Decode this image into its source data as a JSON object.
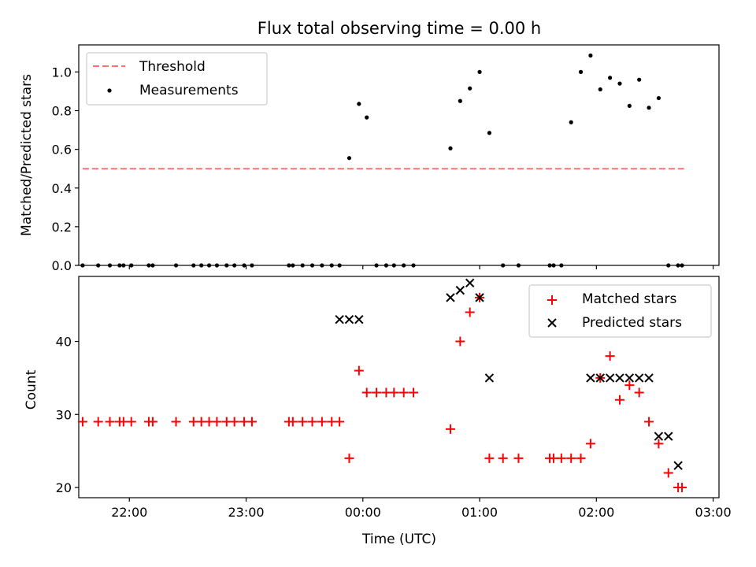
{
  "chart_data": [
    {
      "type": "scatter",
      "title": "Flux total observing time = 0.00 h",
      "xlabel": "",
      "ylabel": "Matched/Predicted stars",
      "xlim": [
        "21:34",
        "03:03"
      ],
      "ylim": [
        0,
        1.14
      ],
      "x_ticks": [
        "22:00",
        "23:00",
        "00:00",
        "01:00",
        "02:00",
        "03:00"
      ],
      "x_tick_labels_visible": false,
      "y_ticks": [
        0.0,
        0.2,
        0.4,
        0.6,
        0.8,
        1.0
      ],
      "y_tick_labels": [
        "0.0",
        "0.2",
        "0.4",
        "0.6",
        "0.8",
        "1.0"
      ],
      "legend": {
        "position": "upper left",
        "entries": [
          "Threshold",
          "Measurements"
        ]
      },
      "threshold": {
        "name": "Threshold",
        "y": 0.5,
        "x_range": [
          "21:36",
          "02:45"
        ],
        "color": "#ff7070",
        "style": "dashed"
      },
      "series": [
        {
          "name": "Measurements",
          "marker": "dot",
          "color": "#000000",
          "x": [
            "21:36",
            "21:44",
            "21:50",
            "21:55",
            "21:57",
            "22:01",
            "22:10",
            "22:12",
            "22:24",
            "22:33",
            "22:37",
            "22:41",
            "22:45",
            "22:50",
            "22:54",
            "22:59",
            "23:03",
            "23:22",
            "23:24",
            "23:29",
            "23:34",
            "23:39",
            "23:44",
            "23:48",
            "23:53",
            "23:58",
            "00:02",
            "00:07",
            "00:12",
            "00:16",
            "00:21",
            "00:26",
            "00:45",
            "00:50",
            "00:55",
            "01:00",
            "01:05",
            "01:12",
            "01:20",
            "01:36",
            "01:38",
            "01:42",
            "01:47",
            "01:52",
            "01:57",
            "02:02",
            "02:07",
            "02:12",
            "02:17",
            "02:22",
            "02:27",
            "02:32",
            "02:37",
            "02:42",
            "02:44"
          ],
          "y": [
            0,
            0,
            0,
            0,
            0,
            0,
            0,
            0,
            0,
            0,
            0,
            0,
            0,
            0,
            0,
            0,
            0,
            0,
            0,
            0,
            0,
            0,
            0,
            0,
            0.555,
            0.835,
            0.765,
            0,
            0,
            0,
            0,
            0,
            0.605,
            0.85,
            0.915,
            1.0,
            0.685,
            0,
            0,
            0,
            0,
            0,
            0.74,
            1.0,
            1.085,
            0.91,
            0.97,
            0.94,
            0.825,
            0.96,
            0.815,
            0.865,
            0,
            0,
            0
          ]
        }
      ]
    },
    {
      "type": "scatter",
      "title": "",
      "xlabel": "Time (UTC)",
      "ylabel": "Count",
      "xlim": [
        "21:34",
        "03:03"
      ],
      "ylim": [
        18.6,
        48.9
      ],
      "x_ticks": [
        "22:00",
        "23:00",
        "00:00",
        "01:00",
        "02:00",
        "03:00"
      ],
      "x_tick_labels": [
        "22:00",
        "23:00",
        "00:00",
        "01:00",
        "02:00",
        "03:00"
      ],
      "y_ticks": [
        20,
        30,
        40
      ],
      "y_tick_labels": [
        "20",
        "30",
        "40"
      ],
      "legend": {
        "position": "upper right",
        "entries": [
          "Matched stars",
          "Predicted stars"
        ]
      },
      "series": [
        {
          "name": "Matched stars",
          "marker": "plus",
          "color": "#ff0000",
          "x": [
            "21:36",
            "21:44",
            "21:50",
            "21:55",
            "21:57",
            "22:01",
            "22:10",
            "22:12",
            "22:24",
            "22:33",
            "22:37",
            "22:41",
            "22:45",
            "22:50",
            "22:54",
            "22:59",
            "23:03",
            "23:22",
            "23:24",
            "23:29",
            "23:34",
            "23:39",
            "23:44",
            "23:48",
            "23:53",
            "23:58",
            "00:02",
            "00:07",
            "00:12",
            "00:16",
            "00:21",
            "00:26",
            "00:45",
            "00:50",
            "00:55",
            "01:00",
            "01:05",
            "01:12",
            "01:20",
            "01:36",
            "01:38",
            "01:42",
            "01:47",
            "01:52",
            "01:57",
            "02:02",
            "02:07",
            "02:12",
            "02:17",
            "02:22",
            "02:27",
            "02:32",
            "02:37",
            "02:42",
            "02:44"
          ],
          "y": [
            29,
            29,
            29,
            29,
            29,
            29,
            29,
            29,
            29,
            29,
            29,
            29,
            29,
            29,
            29,
            29,
            29,
            29,
            29,
            29,
            29,
            29,
            29,
            29,
            24,
            36,
            33,
            33,
            33,
            33,
            33,
            33,
            28,
            40,
            44,
            46,
            24,
            24,
            24,
            24,
            24,
            24,
            24,
            24,
            26,
            35,
            38,
            32,
            34,
            33,
            29,
            26,
            22,
            20,
            20
          ]
        },
        {
          "name": "Predicted stars",
          "marker": "x",
          "color": "#000000",
          "x": [
            "23:48",
            "23:53",
            "23:58",
            "00:45",
            "00:50",
            "00:55",
            "01:00",
            "01:05",
            "01:57",
            "02:02",
            "02:07",
            "02:12",
            "02:17",
            "02:22",
            "02:27",
            "02:32",
            "02:37",
            "02:42"
          ],
          "y": [
            43,
            43,
            43,
            46,
            47,
            48,
            46,
            35,
            35,
            35,
            35,
            35,
            35,
            35,
            35,
            27,
            27,
            23
          ]
        }
      ]
    }
  ]
}
